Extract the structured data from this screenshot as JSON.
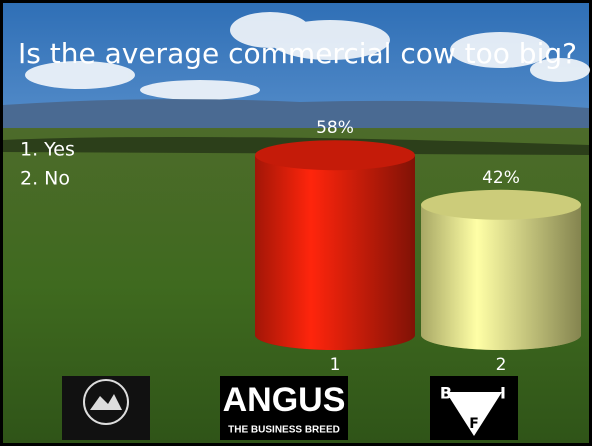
{
  "title": "Is the average commercial cow too big?",
  "options": [
    "1. Yes",
    "2. No"
  ],
  "chart_data": {
    "type": "bar",
    "categories": [
      "1",
      "2"
    ],
    "values": [
      58,
      42
    ],
    "value_labels": [
      "58%",
      "42%"
    ],
    "series_colors": [
      "#e8200a",
      "#f0f090"
    ]
  },
  "logos": {
    "angus": [
      "ANGUS",
      "THE BUSINESS BREED"
    ],
    "bif": [
      "B",
      "I",
      "F"
    ]
  }
}
